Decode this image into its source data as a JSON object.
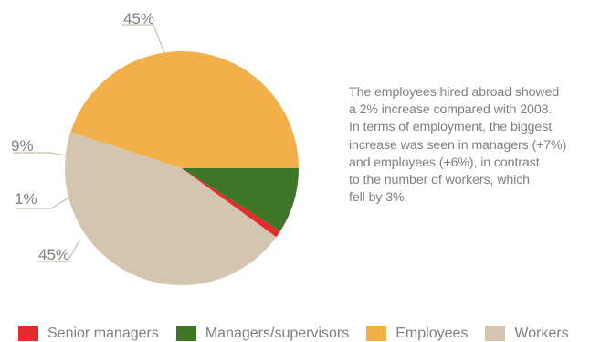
{
  "chart_data": {
    "type": "pie",
    "slices": [
      {
        "name": "Employees",
        "value": 45,
        "label": "45%",
        "color": "#F3B04A"
      },
      {
        "name": "Workers",
        "value": 45,
        "label": "45%",
        "color": "#D4C5B0"
      },
      {
        "name": "Senior managers",
        "value": 1,
        "label": "1%",
        "color": "#E32B2B"
      },
      {
        "name": "Managers/supervisors",
        "value": 9,
        "label": "9%",
        "color": "#3E7628"
      }
    ],
    "legend": {
      "placement": "bottom",
      "items": [
        "Senior managers",
        "Managers/supervisors",
        "Employees",
        "Workers"
      ]
    }
  },
  "description": {
    "lines": [
      "The employees hired abroad showed",
      "a 2% increase compared with 2008.",
      "In terms of employment, the biggest",
      "increase was seen in managers (+7%)",
      "and employees (+6%), in contrast",
      "to the number of workers, which",
      "fell by 3%."
    ]
  },
  "colors": {
    "text": "#808080",
    "leader_line": "#C9BFAE"
  }
}
